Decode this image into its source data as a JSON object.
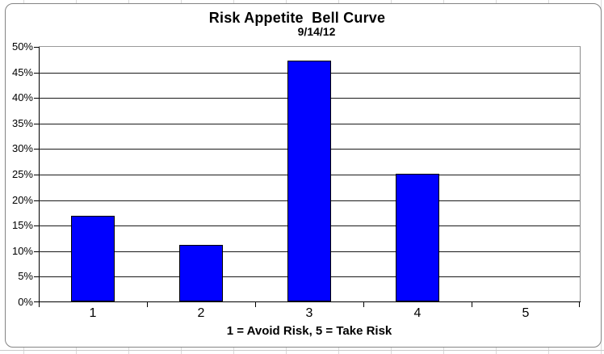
{
  "chart_data": {
    "type": "bar",
    "title": "Risk Appetite  Bell Curve",
    "subtitle": "9/14/12",
    "categories": [
      "1",
      "2",
      "3",
      "4",
      "5"
    ],
    "values": [
      16.7,
      11.1,
      47.2,
      25.0,
      0.0
    ],
    "xlabel": "1 = Avoid Risk, 5 = Take Risk",
    "ylabel": "",
    "ylim": [
      0,
      50
    ],
    "ytick_step": 5,
    "ytick_labels": [
      "0%",
      "5%",
      "10%",
      "15%",
      "20%",
      "25%",
      "30%",
      "35%",
      "40%",
      "45%",
      "50%"
    ],
    "legend": "none",
    "grid": true,
    "colors": {
      "bar_fill": "#0000ff",
      "bar_border": "#000000",
      "gridline": "#1a1a1a",
      "plot_border": "#9a9a9a",
      "axis": "#000000",
      "chart_border": "#848484",
      "background": "#ffffff"
    }
  }
}
